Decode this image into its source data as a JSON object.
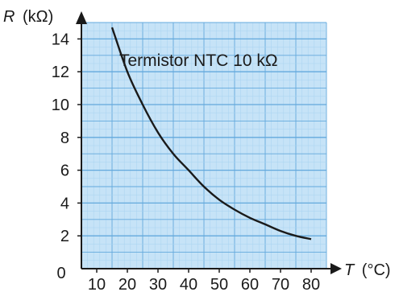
{
  "chart_data": {
    "type": "line",
    "title": "",
    "annotation": "Termistor NTC 10 kΩ",
    "ylabel_symbol": "R",
    "ylabel_unit": "(kΩ)",
    "xlabel_symbol": "T",
    "xlabel_unit": "(°C)",
    "origin_label": "0",
    "xlim": [
      5,
      85
    ],
    "ylim": [
      0,
      15
    ],
    "x_ticks": [
      10,
      20,
      30,
      40,
      50,
      60,
      70,
      80
    ],
    "y_ticks": [
      2,
      4,
      6,
      8,
      10,
      12,
      14
    ],
    "grid": true,
    "colors": {
      "grid_fill": "#c6e3f7",
      "grid_line": "#63a9dc",
      "grid_minor": "#a9d3f0",
      "curve": "#1a1a1a",
      "axis": "#1a1a1a"
    },
    "series": [
      {
        "x": [
          15,
          20,
          25,
          30,
          35,
          40,
          45,
          50,
          55,
          60,
          65,
          70,
          75,
          80
        ],
        "y": [
          14.7,
          12.0,
          10.0,
          8.3,
          7.0,
          6.0,
          5.0,
          4.2,
          3.6,
          3.1,
          2.7,
          2.3,
          2.0,
          1.8
        ]
      }
    ]
  }
}
